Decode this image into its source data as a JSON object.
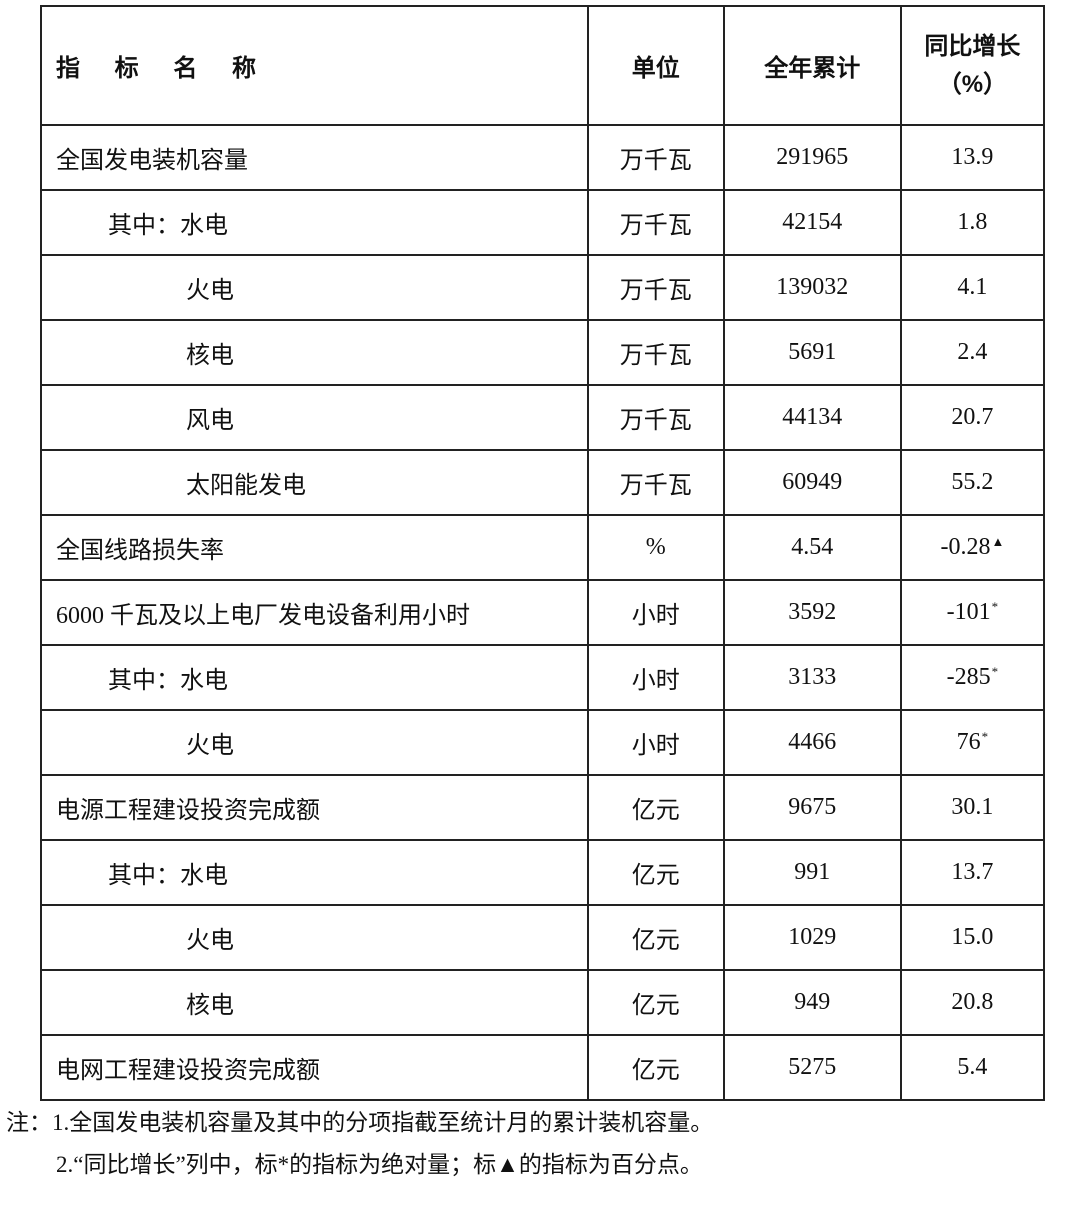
{
  "table": {
    "headers": {
      "name": "指 标 名 称",
      "unit": "单位",
      "total": "全年累计",
      "growth": "同比增长",
      "growth_unit": "（%）"
    },
    "rows": [
      {
        "name": "全国发电装机容量",
        "level": 0,
        "unit": "万千瓦",
        "total": "291965",
        "growth": "13.9",
        "mark": ""
      },
      {
        "name": "其中：水电",
        "level": 1,
        "unit": "万千瓦",
        "total": "42154",
        "growth": "1.8",
        "mark": ""
      },
      {
        "name": "火电",
        "level": 2,
        "unit": "万千瓦",
        "total": "139032",
        "growth": "4.1",
        "mark": ""
      },
      {
        "name": "核电",
        "level": 2,
        "unit": "万千瓦",
        "total": "5691",
        "growth": "2.4",
        "mark": ""
      },
      {
        "name": "风电",
        "level": 2,
        "unit": "万千瓦",
        "total": "44134",
        "growth": "20.7",
        "mark": ""
      },
      {
        "name": "太阳能发电",
        "level": 2,
        "unit": "万千瓦",
        "total": "60949",
        "growth": "55.2",
        "mark": ""
      },
      {
        "name": "全国线路损失率",
        "level": 0,
        "unit": "%",
        "total": "4.54",
        "growth": "-0.28",
        "mark": "▲"
      },
      {
        "name": "6000 千瓦及以上电厂发电设备利用小时",
        "level": 0,
        "unit": "小时",
        "total": "3592",
        "growth": "-101",
        "mark": "*"
      },
      {
        "name": "其中：水电",
        "level": 1,
        "unit": "小时",
        "total": "3133",
        "growth": "-285",
        "mark": "*"
      },
      {
        "name": "火电",
        "level": 2,
        "unit": "小时",
        "total": "4466",
        "growth": "76",
        "mark": "*"
      },
      {
        "name": "电源工程建设投资完成额",
        "level": 0,
        "unit": "亿元",
        "total": "9675",
        "growth": "30.1",
        "mark": ""
      },
      {
        "name": "其中：水电",
        "level": 1,
        "unit": "亿元",
        "total": "991",
        "growth": "13.7",
        "mark": ""
      },
      {
        "name": "火电",
        "level": 2,
        "unit": "亿元",
        "total": "1029",
        "growth": "15.0",
        "mark": ""
      },
      {
        "name": "核电",
        "level": 2,
        "unit": "亿元",
        "total": "949",
        "growth": "20.8",
        "mark": ""
      },
      {
        "name": "电网工程建设投资完成额",
        "level": 0,
        "unit": "亿元",
        "total": "5275",
        "growth": "5.4",
        "mark": ""
      }
    ]
  },
  "notes": [
    "注：1.全国发电装机容量及其中的分项指截至统计月的累计装机容量。",
    "2.“同比增长”列中，标*的指标为绝对量；标▲的指标为百分点。"
  ]
}
